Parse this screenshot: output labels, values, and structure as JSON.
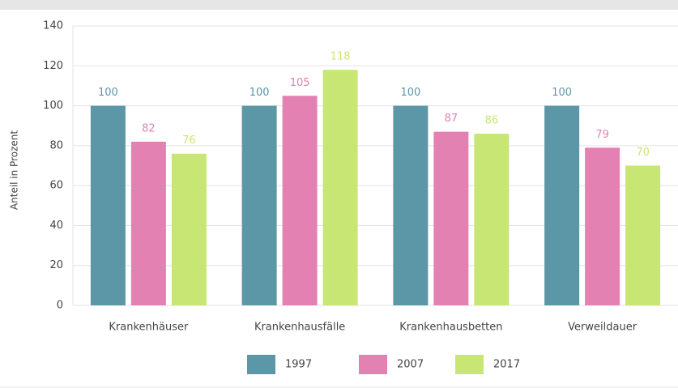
{
  "chart_data": {
    "type": "bar",
    "y_label": "Anteil in Prozent",
    "categories": [
      "Krankenhäuser",
      "Krankenhausfälle",
      "Krankenhausbetten",
      "Verweildauer"
    ],
    "series": [
      {
        "name": "1997",
        "color": "#5b97a6",
        "values": [
          100,
          100,
          100,
          100
        ]
      },
      {
        "name": "2007",
        "color": "#e381b3",
        "values": [
          82,
          105,
          87,
          79
        ]
      },
      {
        "name": "2017",
        "color": "#c8e673",
        "values": [
          76,
          118,
          86,
          70
        ]
      }
    ],
    "ylim": [
      0,
      140
    ],
    "yticks": [
      0,
      20,
      40,
      60,
      80,
      100,
      120,
      140
    ],
    "grid": true
  }
}
